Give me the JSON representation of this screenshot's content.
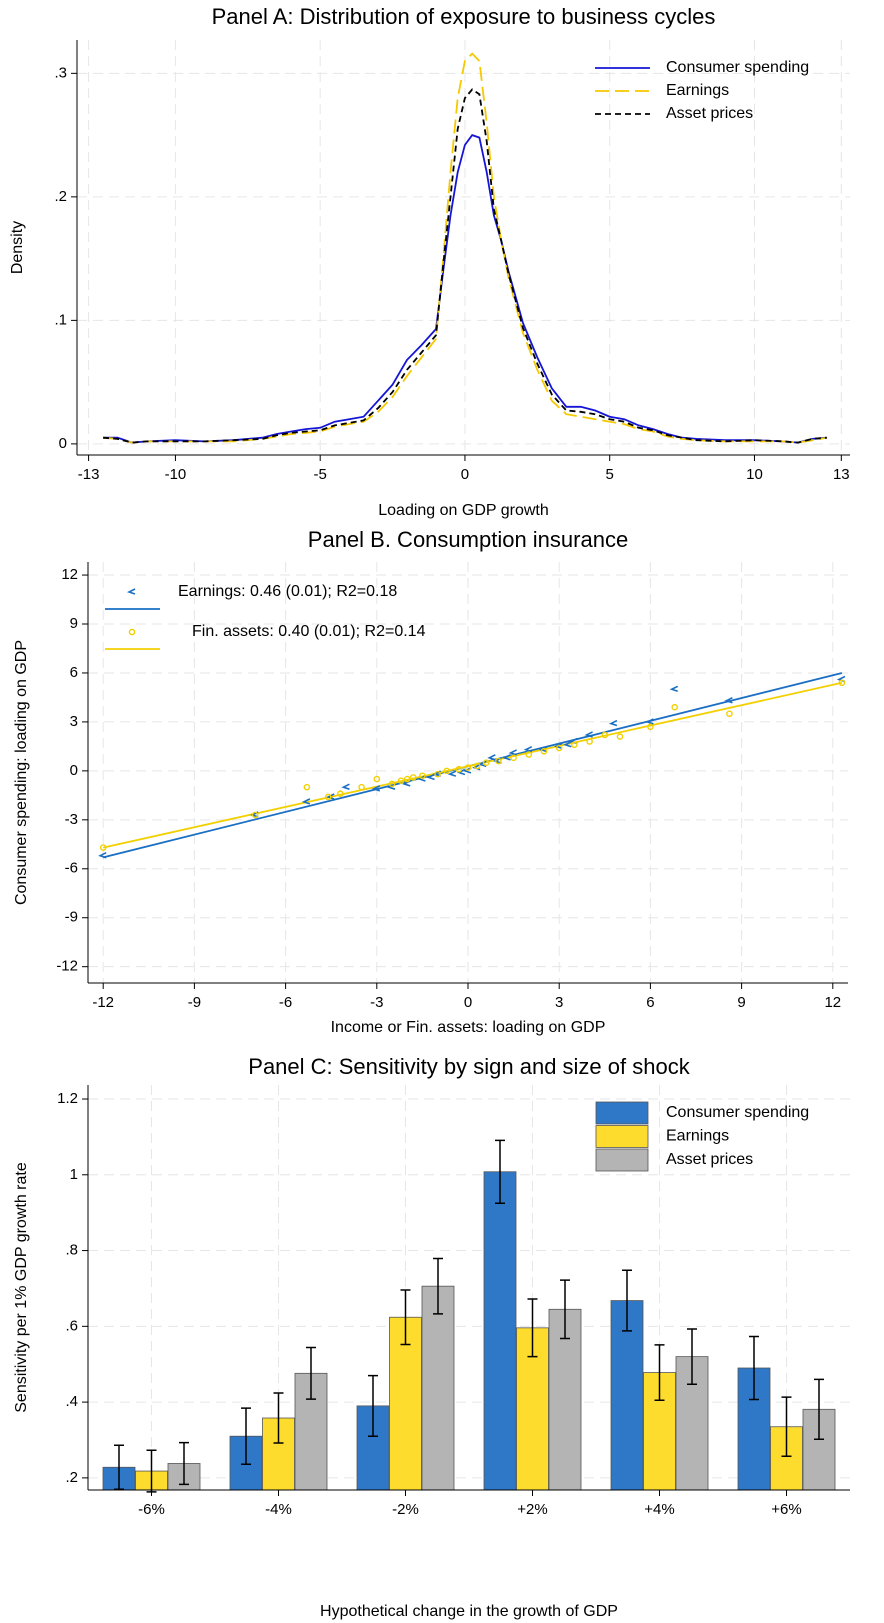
{
  "chart_data": [
    {
      "type": "line",
      "title": "Panel A: Distribution of exposure to business cycles",
      "xlabel": "Loading on GDP growth",
      "ylabel": "Density",
      "x": [
        -12.5,
        -12,
        -11.5,
        -11,
        -10,
        -9,
        -8,
        -7,
        -6.5,
        -6,
        -5.5,
        -5,
        -4.5,
        -4,
        -3.5,
        -3,
        -2.5,
        -2,
        -1.5,
        -1,
        -0.75,
        -0.5,
        -0.25,
        0,
        0.25,
        0.5,
        0.75,
        1,
        1.25,
        1.5,
        2,
        2.5,
        3,
        3.5,
        4,
        4.5,
        5,
        5.5,
        6,
        6.5,
        7,
        7.5,
        8,
        9,
        10,
        11,
        11.5,
        12,
        12.5
      ],
      "series": [
        {
          "name": "Consumer spending",
          "color": "#1515d6",
          "linestyle": "solid",
          "values": [
            0.005,
            0.005,
            0.001,
            0.002,
            0.003,
            0.002,
            0.003,
            0.005,
            0.008,
            0.01,
            0.012,
            0.013,
            0.018,
            0.02,
            0.022,
            0.035,
            0.048,
            0.068,
            0.08,
            0.093,
            0.14,
            0.185,
            0.22,
            0.242,
            0.25,
            0.248,
            0.22,
            0.185,
            0.165,
            0.14,
            0.098,
            0.07,
            0.045,
            0.03,
            0.03,
            0.027,
            0.022,
            0.02,
            0.015,
            0.012,
            0.008,
            0.005,
            0.004,
            0.003,
            0.003,
            0.002,
            0.001,
            0.004,
            0.005
          ]
        },
        {
          "name": "Earnings",
          "color": "#f5c800",
          "linestyle": "longdash",
          "values": [
            0.005,
            0.004,
            0.001,
            0.002,
            0.002,
            0.002,
            0.002,
            0.004,
            0.006,
            0.008,
            0.009,
            0.01,
            0.014,
            0.016,
            0.018,
            0.026,
            0.038,
            0.055,
            0.07,
            0.085,
            0.15,
            0.22,
            0.28,
            0.31,
            0.316,
            0.31,
            0.26,
            0.2,
            0.165,
            0.135,
            0.09,
            0.06,
            0.035,
            0.024,
            0.022,
            0.02,
            0.018,
            0.016,
            0.012,
            0.01,
            0.006,
            0.004,
            0.003,
            0.002,
            0.002,
            0.002,
            0.001,
            0.003,
            0.005
          ]
        },
        {
          "name": "Asset prices",
          "color": "#000000",
          "linestyle": "dash",
          "values": [
            0.005,
            0.004,
            0.001,
            0.002,
            0.002,
            0.002,
            0.003,
            0.004,
            0.007,
            0.009,
            0.01,
            0.011,
            0.015,
            0.017,
            0.019,
            0.029,
            0.042,
            0.06,
            0.074,
            0.088,
            0.145,
            0.2,
            0.255,
            0.28,
            0.287,
            0.283,
            0.245,
            0.19,
            0.165,
            0.138,
            0.094,
            0.065,
            0.04,
            0.027,
            0.026,
            0.024,
            0.02,
            0.018,
            0.013,
            0.011,
            0.007,
            0.005,
            0.003,
            0.002,
            0.003,
            0.002,
            0.001,
            0.004,
            0.005
          ]
        }
      ],
      "xlim": [
        -13.4,
        13.3
      ],
      "ylim": [
        -0.009,
        0.327
      ],
      "xticks": [
        -13,
        -10,
        -5,
        0,
        5,
        10,
        13
      ],
      "yticks": [
        0,
        {
          "value": 0.1,
          "label": ".1"
        },
        {
          "value": 0.2,
          "label": ".2"
        },
        {
          "value": 0.3,
          "label": ".3"
        }
      ],
      "grid": true,
      "legend": "upper right"
    },
    {
      "type": "scatter",
      "title": "Panel B. Consumption insurance",
      "xlabel": "Income or Fin. assets: loading on GDP",
      "ylabel": "Consumer spending: loading on GDP",
      "series": [
        {
          "name": "Earnings: 0.46 (0.01);  R2=0.18",
          "color": "#1a6fc4",
          "marker": "<",
          "x": [
            -12,
            -7,
            -5.3,
            -4.5,
            -4,
            -3,
            -2.5,
            -2,
            -1.5,
            -1.2,
            -1,
            -0.5,
            -0.2,
            0,
            0.3,
            0.5,
            0.8,
            1,
            1.3,
            1.5,
            2,
            2.5,
            3,
            3.3,
            3.5,
            4,
            4.8,
            6,
            6.8,
            8.6,
            12.3
          ],
          "y": [
            -5.2,
            -2.7,
            -1.9,
            -1.6,
            -1,
            -1.1,
            -1,
            -0.8,
            -0.5,
            -0.4,
            -0.2,
            -0.2,
            -0.1,
            0,
            0.2,
            0.4,
            0.8,
            0.6,
            0.8,
            1.1,
            1.3,
            1.3,
            1.5,
            1.6,
            1.8,
            2.2,
            2.9,
            3,
            5,
            4.3,
            5.6
          ],
          "fit_x": [
            -12,
            12.3
          ],
          "fit_y": [
            -5.3,
            6
          ]
        },
        {
          "name": "Fin. assets: 0.40 (0.01);  R2=0.14",
          "color": "#f2d000",
          "marker": "o",
          "x": [
            -12,
            -7,
            -5.3,
            -4.6,
            -4.2,
            -3.5,
            -3,
            -2.5,
            -2.2,
            -2,
            -1.8,
            -1.5,
            -1,
            -0.7,
            -0.3,
            0,
            0.3,
            0.6,
            1,
            1.5,
            2,
            2.5,
            3,
            3.5,
            4,
            4.5,
            5,
            6,
            6.8,
            8.6,
            12.3
          ],
          "y": [
            -4.7,
            -2.7,
            -1,
            -1.6,
            -1.4,
            -1,
            -0.5,
            -0.8,
            -0.6,
            -0.5,
            -0.4,
            -0.3,
            -0.2,
            0,
            0.1,
            0.2,
            0.3,
            0.5,
            0.6,
            0.8,
            1,
            1.2,
            1.4,
            1.6,
            1.8,
            2.2,
            2.1,
            2.7,
            3.9,
            3.5,
            5.4
          ],
          "fit_x": [
            -12,
            12.3
          ],
          "fit_y": [
            -4.7,
            5.4
          ]
        }
      ],
      "xlim": [
        -12.5,
        12.5
      ],
      "ylim": [
        -13,
        12.8
      ],
      "xticks": [
        -12,
        -9,
        -6,
        -3,
        0,
        3,
        6,
        9,
        12
      ],
      "yticks": [
        -12,
        -9,
        -6,
        -3,
        0,
        3,
        6,
        9,
        12
      ],
      "grid": true,
      "legend": "upper left"
    },
    {
      "type": "bar",
      "title": "Panel C: Sensitivity by sign and size of shock",
      "xlabel": "Hypothetical change in the growth of GDP",
      "ylabel": "Sensitivity per 1% GDP growth rate",
      "categories": [
        "-6%",
        "-4%",
        "-2%",
        "+2%",
        "+4%",
        "+6%"
      ],
      "series": [
        {
          "name": "Consumer spending",
          "color": "#2f78c8",
          "values": [
            0.228,
            0.31,
            0.39,
            1.008,
            0.668,
            0.49
          ],
          "errors": [
            0.058,
            0.074,
            0.08,
            0.083,
            0.08,
            0.083
          ]
        },
        {
          "name": "Earnings",
          "color": "#fddc2e",
          "values": [
            0.218,
            0.358,
            0.624,
            0.596,
            0.478,
            0.335
          ],
          "errors": [
            0.055,
            0.066,
            0.072,
            0.076,
            0.073,
            0.078
          ]
        },
        {
          "name": "Asset prices",
          "color": "#b4b4b4",
          "values": [
            0.238,
            0.476,
            0.706,
            0.645,
            0.52,
            0.381
          ],
          "errors": [
            0.055,
            0.068,
            0.073,
            0.077,
            0.073,
            0.079
          ]
        }
      ],
      "ylim": [
        0.168,
        1.237
      ],
      "yticks": [
        {
          "value": 0.2,
          "label": ".2"
        },
        {
          "value": 0.4,
          "label": ".4"
        },
        {
          "value": 0.6,
          "label": ".6"
        },
        {
          "value": 0.8,
          "label": ".8"
        },
        1,
        1.2
      ],
      "grid": true,
      "legend": "upper right"
    }
  ]
}
